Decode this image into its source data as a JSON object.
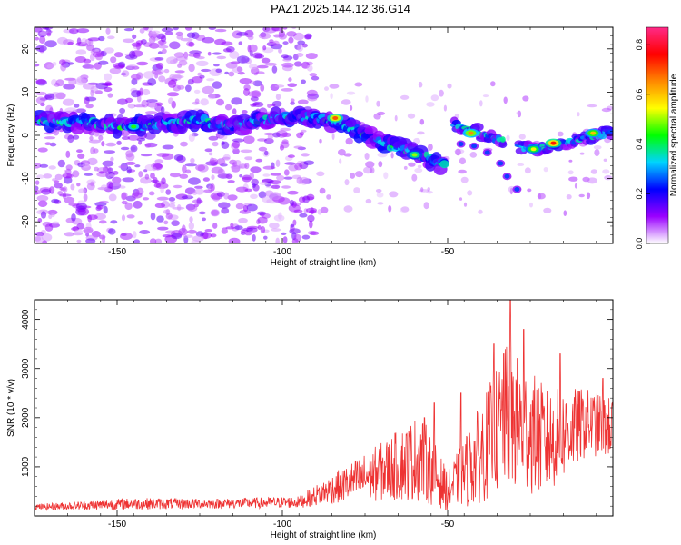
{
  "title": "PAZ1.2025.144.12.36.G14",
  "chart_data": [
    {
      "type": "heatmap",
      "xlabel": "Height of straight line (km)",
      "ylabel": "Frequency (Hz)",
      "xlim": [
        -175,
        0
      ],
      "ylim": [
        -25,
        25
      ],
      "xticks": [
        -150,
        -100,
        -50
      ],
      "yticks": [
        -20,
        -10,
        0,
        10,
        20
      ],
      "colorbar": {
        "label": "Normalized spectral amplitude",
        "range": [
          0,
          0.87
        ],
        "ticks": [
          "0.0",
          "0.2",
          "0.4",
          "0.6",
          "0.8"
        ],
        "colors": [
          "#ffffff",
          "#9a00ff",
          "#0000ff",
          "#00d4ff",
          "#00ff00",
          "#ffff00",
          "#ff8800",
          "#ff0000",
          "#ff2a88"
        ]
      },
      "ridge": [
        {
          "x": -174,
          "y": 3.5
        },
        {
          "x": -160,
          "y": 3.0
        },
        {
          "x": -150,
          "y": 2.0
        },
        {
          "x": -140,
          "y": 2.5
        },
        {
          "x": -125,
          "y": 3.5
        },
        {
          "x": -115,
          "y": 2.0
        },
        {
          "x": -105,
          "y": 3.5
        },
        {
          "x": -97,
          "y": 4.5
        },
        {
          "x": -88,
          "y": 4.0
        },
        {
          "x": -80,
          "y": 2.0
        },
        {
          "x": -70,
          "y": -1.5
        },
        {
          "x": -60,
          "y": -4.0
        },
        {
          "x": -52,
          "y": -6.5
        }
      ],
      "ridge_right": [
        {
          "x": -48,
          "y": 2.5
        },
        {
          "x": -40,
          "y": 0.5
        },
        {
          "x": -33,
          "y": -1.5
        },
        {
          "x": -25,
          "y": -3.0
        },
        {
          "x": -15,
          "y": -2.0
        },
        {
          "x": -5,
          "y": 0.0
        },
        {
          "x": 0,
          "y": 1.0
        }
      ],
      "peaks": [
        {
          "x": -84,
          "y": 4.0,
          "amp": 0.7
        },
        {
          "x": -43,
          "y": 0.5,
          "amp": 0.65
        },
        {
          "x": -18,
          "y": -1.8,
          "amp": 0.75
        },
        {
          "x": -24,
          "y": -3.2,
          "amp": 0.55
        },
        {
          "x": -6,
          "y": 0.5,
          "amp": 0.6
        },
        {
          "x": -60,
          "y": -4.5,
          "amp": 0.5
        },
        {
          "x": -145,
          "y": 2.0,
          "amp": 0.45
        }
      ]
    },
    {
      "type": "line",
      "xlabel": "Height of straight line (km)",
      "ylabel": "SNR (10 * v/v)",
      "xlim": [
        -175,
        0
      ],
      "ylim": [
        0,
        4400
      ],
      "xticks": [
        -150,
        -100,
        -50
      ],
      "yticks": [
        1000,
        2000,
        3000,
        4000
      ],
      "color": "#ee3333",
      "envelope": [
        {
          "x": -175,
          "base": 180,
          "amp": 60
        },
        {
          "x": -145,
          "base": 250,
          "amp": 120
        },
        {
          "x": -120,
          "base": 250,
          "amp": 100
        },
        {
          "x": -95,
          "base": 280,
          "amp": 120
        },
        {
          "x": -85,
          "base": 550,
          "amp": 300
        },
        {
          "x": -70,
          "base": 900,
          "amp": 600
        },
        {
          "x": -58,
          "base": 1200,
          "amp": 900
        },
        {
          "x": -50,
          "base": 500,
          "amp": 400
        },
        {
          "x": -42,
          "base": 1100,
          "amp": 900
        },
        {
          "x": -32,
          "base": 2000,
          "amp": 1500
        },
        {
          "x": -20,
          "base": 1500,
          "amp": 1100
        },
        {
          "x": -8,
          "base": 1900,
          "amp": 700
        },
        {
          "x": 0,
          "base": 1800,
          "amp": 600
        }
      ],
      "spikes": [
        {
          "x": -31,
          "y": 4400
        },
        {
          "x": -36,
          "y": 3500
        },
        {
          "x": -27,
          "y": 3800
        },
        {
          "x": -16,
          "y": 3300
        },
        {
          "x": -33,
          "y": 3300
        },
        {
          "x": -46,
          "y": 2500
        },
        {
          "x": -54,
          "y": 2300
        },
        {
          "x": -57,
          "y": 2000
        },
        {
          "x": -3,
          "y": 2800
        }
      ]
    }
  ]
}
